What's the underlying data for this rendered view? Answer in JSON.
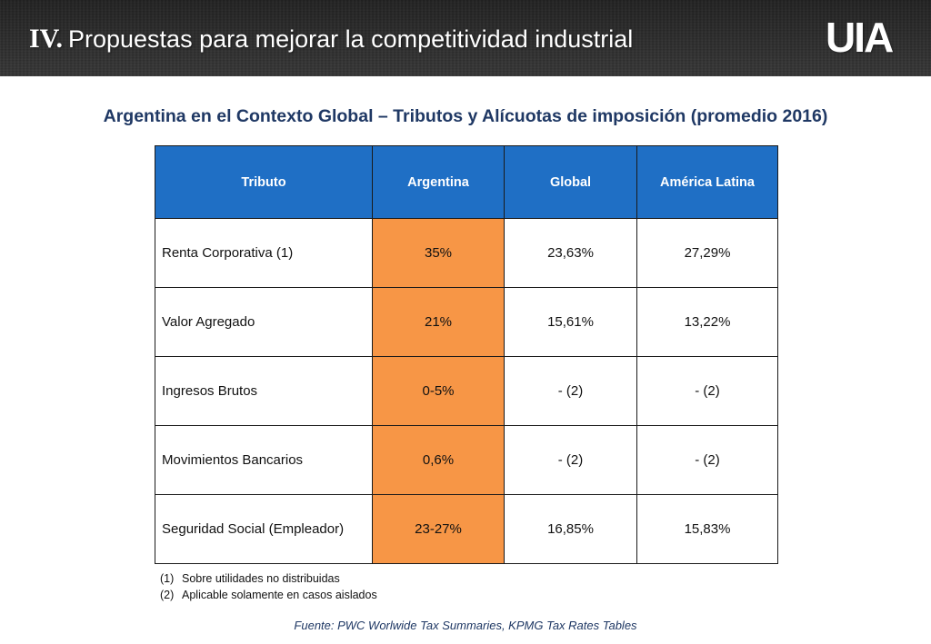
{
  "header": {
    "section_number": "IV.",
    "title": "Propuestas para mejorar la competitividad industrial",
    "logo_text": "UIA"
  },
  "heading": "Argentina en el Contexto Global – Tributos y Alícuotas de imposición (promedio 2016)",
  "table": {
    "columns": [
      "Tributo",
      "Argentina",
      "Global",
      "América Latina"
    ],
    "rows": [
      [
        "Renta Corporativa (1)",
        "35%",
        "23,63%",
        "27,29%"
      ],
      [
        "Valor Agregado",
        "21%",
        "15,61%",
        "13,22%"
      ],
      [
        "Ingresos Brutos",
        "0-5%",
        "- (2)",
        "- (2)"
      ],
      [
        "Movimientos Bancarios",
        "0,6%",
        "- (2)",
        "- (2)"
      ],
      [
        "Seguridad Social (Empleador)",
        "23-27%",
        "16,85%",
        "15,83%"
      ]
    ],
    "colors": {
      "header_bg": "#1f6fc5",
      "argentina_bg": "#f79646"
    }
  },
  "notes": [
    {
      "marker": "(1)",
      "text": "Sobre utilidades no distribuidas"
    },
    {
      "marker": "(2)",
      "text": "Aplicable solamente en casos aislados"
    }
  ],
  "source": "Fuente: PWC Worlwide Tax Summaries, KPMG Tax Rates Tables"
}
